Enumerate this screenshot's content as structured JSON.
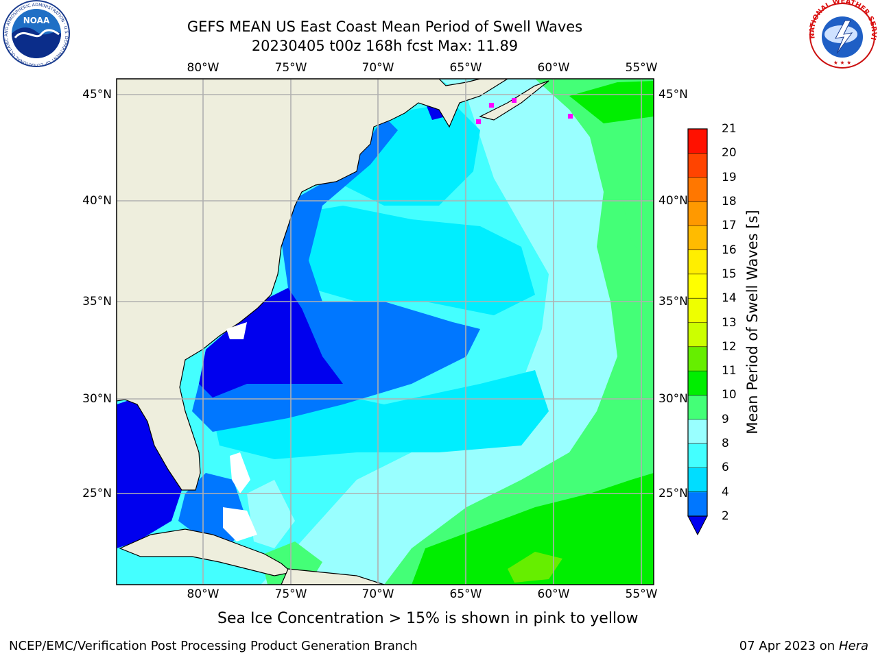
{
  "title": {
    "line1": "GEFS MEAN US East Coast Mean Period of Swell Waves",
    "line2": "20230405 t00z 168h fcst   Max: 11.89"
  },
  "map": {
    "lon_labels": [
      "80°W",
      "75°W",
      "70°W",
      "65°W",
      "60°W",
      "55°W"
    ],
    "lat_labels": [
      "45°N",
      "40°N",
      "35°N",
      "30°N",
      "25°N"
    ],
    "colors": {
      "land": "#eeeedd",
      "frame": "#000000",
      "grid": "#b0b0b0",
      "sea_ice": "#ff00ff"
    }
  },
  "colorbar": {
    "label": "Mean Period of Swell Waves [s]",
    "ticks": [
      "2",
      "4",
      "6",
      "8",
      "9",
      "10",
      "11",
      "12",
      "13",
      "14",
      "15",
      "16",
      "17",
      "18",
      "19",
      "20",
      "21"
    ],
    "levels": [
      {
        "from": 2,
        "to": 4,
        "color": "#0077ff"
      },
      {
        "from": 4,
        "to": 6,
        "color": "#00ddff"
      },
      {
        "from": 6,
        "to": 8,
        "color": "#44ffff"
      },
      {
        "from": 8,
        "to": 9,
        "color": "#99ffff"
      },
      {
        "from": 9,
        "to": 10,
        "color": "#44ff77"
      },
      {
        "from": 10,
        "to": 11,
        "color": "#00ee00"
      },
      {
        "from": 11,
        "to": 12,
        "color": "#66ee00"
      },
      {
        "from": 12,
        "to": 13,
        "color": "#ccff00"
      },
      {
        "from": 13,
        "to": 14,
        "color": "#eeff00"
      },
      {
        "from": 14,
        "to": 15,
        "color": "#ffff00"
      },
      {
        "from": 15,
        "to": 16,
        "color": "#ffee00"
      },
      {
        "from": 16,
        "to": 17,
        "color": "#ffbb00"
      },
      {
        "from": 17,
        "to": 18,
        "color": "#ff9900"
      },
      {
        "from": 18,
        "to": 19,
        "color": "#ff7700"
      },
      {
        "from": 19,
        "to": 20,
        "color": "#ff4400"
      },
      {
        "from": 20,
        "to": 21,
        "color": "#ff1100"
      }
    ],
    "under_color": "#0000ee"
  },
  "note": "Sea Ice Concentration > 15% is shown in pink to yellow",
  "footer": {
    "left": "NCEP/EMC/Verification Post Processing Product Generation Branch",
    "date": "07 Apr 2023 on ",
    "machine": "Hera"
  },
  "logos": {
    "noaa": {
      "text": "NOAA",
      "ring": "NATIONAL OCEANIC AND ATMOSPHERIC ADMINISTRATION · U.S. DEPARTMENT OF COMMERCE"
    },
    "nws": {
      "ring": "NATIONAL WEATHER SERVICE"
    }
  }
}
